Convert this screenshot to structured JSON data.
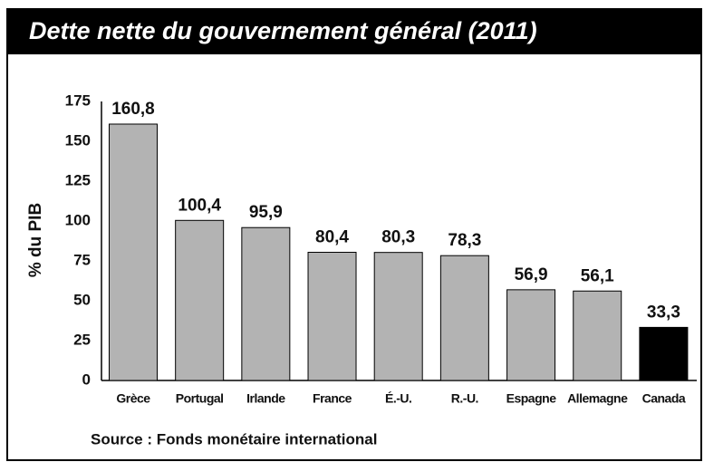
{
  "chart_data": {
    "type": "bar",
    "title": "Dette nette du gouvernement général (2011)",
    "y_label": "% du PIB",
    "source": "Source : Fonds monétaire international",
    "categories": [
      "Grèce",
      "Portugal",
      "Irlande",
      "France",
      "É.-U.",
      "R.-U.",
      "Espagne",
      "Allemagne",
      "Canada"
    ],
    "values": [
      160.8,
      100.4,
      95.9,
      80.4,
      80.3,
      78.3,
      56.9,
      56.1,
      33.3
    ],
    "value_labels": [
      "160,8",
      "100,4",
      "95,9",
      "80,4",
      "80,3",
      "78,3",
      "56,9",
      "56,1",
      "33,3"
    ],
    "colors": [
      "#b3b3b3",
      "#b3b3b3",
      "#b3b3b3",
      "#b3b3b3",
      "#b3b3b3",
      "#b3b3b3",
      "#b3b3b3",
      "#b3b3b3",
      "#000000"
    ],
    "ylim": [
      0,
      175
    ],
    "yticks": [
      0,
      25,
      50,
      75,
      100,
      125,
      150,
      175
    ],
    "grid": false
  }
}
